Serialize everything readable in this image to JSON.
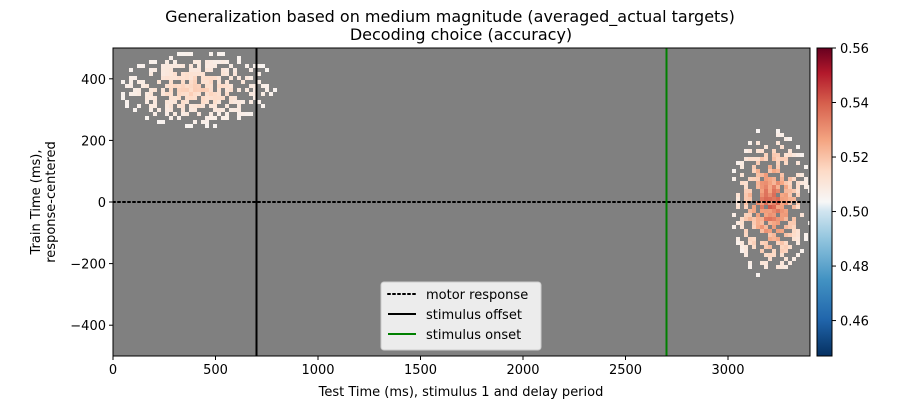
{
  "chart_data": {
    "type": "heatmap",
    "title": "Generalization based on medium magnitude (averaged_actual targets)",
    "subtitle": "Decoding choice (accuracy)",
    "xlabel": "Test Time (ms), stimulus 1 and delay period",
    "ylabel_line1": "Train Time (ms),",
    "ylabel_line2": "response-centered",
    "xlim": [
      0,
      3400
    ],
    "ylim": [
      -500,
      500
    ],
    "xticks": [
      "0",
      "500",
      "1000",
      "1500",
      "2000",
      "2500",
      "3000"
    ],
    "xtick_values": [
      0,
      500,
      1000,
      1500,
      2000,
      2500,
      3000
    ],
    "yticks": [
      "−400",
      "−200",
      "0",
      "200",
      "400"
    ],
    "ytick_values": [
      -400,
      -200,
      0,
      200,
      400
    ],
    "colorbar": {
      "range": [
        0.447,
        0.56
      ],
      "ticks": [
        "0.46",
        "0.48",
        "0.50",
        "0.52",
        "0.54",
        "0.56"
      ],
      "tick_values": [
        0.46,
        0.48,
        0.5,
        0.52,
        0.54,
        0.56
      ],
      "colormap": "RdBu_r"
    },
    "background_color": "#808080",
    "significant_regions": [
      {
        "x_range": [
          3000,
          3400
        ],
        "y_range": [
          -250,
          250
        ],
        "peak_value": 0.545
      },
      {
        "x_range": [
          0,
          800
        ],
        "y_range": [
          250,
          500
        ],
        "peak_value": 0.52
      }
    ],
    "lines": [
      {
        "name": "motor response",
        "orientation": "horizontal",
        "value": 0,
        "style": "dotted",
        "color": "#000000"
      },
      {
        "name": "stimulus offset",
        "orientation": "vertical",
        "value": 700,
        "style": "solid",
        "color": "#000000"
      },
      {
        "name": "stimulus onset",
        "orientation": "vertical",
        "value": 2700,
        "style": "solid",
        "color": "#008000"
      }
    ],
    "legend": {
      "placement": "lower-center",
      "entries": [
        "motor response",
        "stimulus offset",
        "stimulus onset"
      ]
    }
  }
}
